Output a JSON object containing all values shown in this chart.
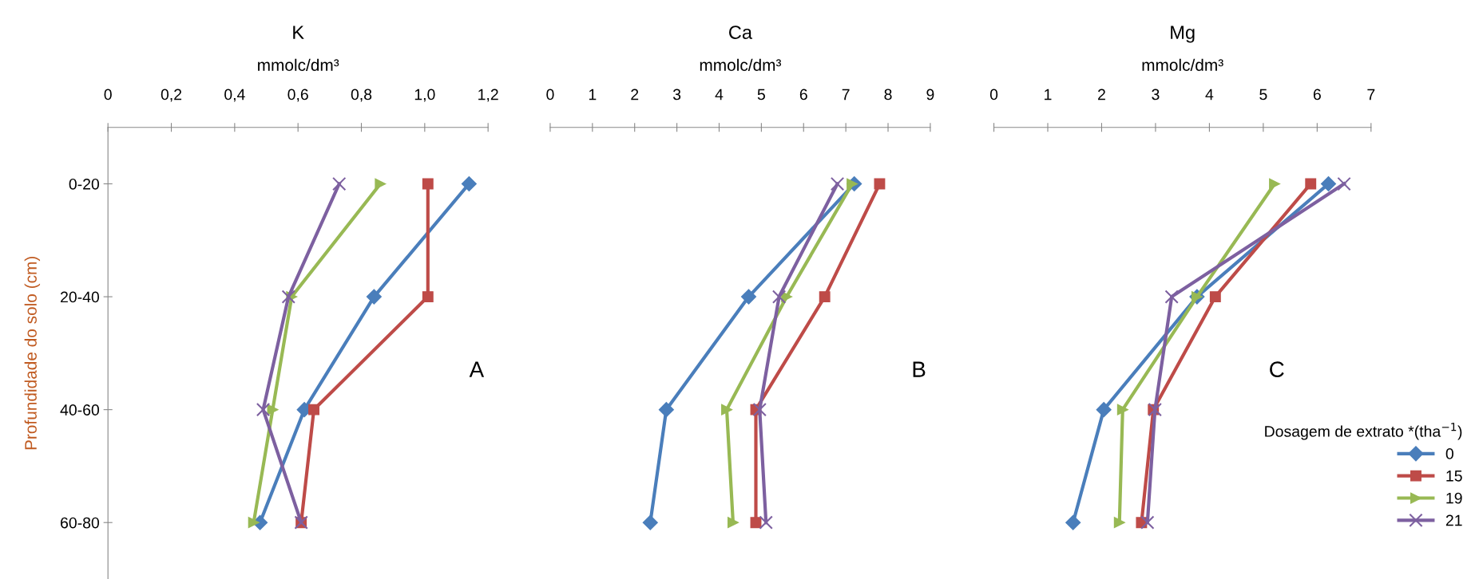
{
  "chart_data": [
    {
      "type": "line",
      "title": "K",
      "xlabel": "mmolc/dm³",
      "ylabel": "Profundidade do solo (cm)",
      "categories": [
        "0-20",
        "20-40",
        "40-60",
        "60-80"
      ],
      "orientation": "horizontal",
      "xlim": [
        0,
        1.2
      ],
      "xticks": [
        0,
        {
          "value": 0.2,
          "label": "0,2"
        },
        {
          "value": 0.4,
          "label": "0,4"
        },
        {
          "value": 0.6,
          "label": "0,6"
        },
        {
          "value": 0.8,
          "label": "0,8"
        },
        {
          "value": 1.0,
          "label": "1,0"
        },
        {
          "value": 1.2,
          "label": "1,2"
        }
      ],
      "annotations": [
        "A"
      ],
      "grid": false,
      "legend": false,
      "series": [
        {
          "color": "#4a7ebb",
          "marker": "diamond",
          "values": [
            1.14,
            0.84,
            0.62,
            0.48
          ]
        },
        {
          "color": "#be4b48",
          "marker": "square",
          "values": [
            1.01,
            1.01,
            0.65,
            0.61
          ]
        },
        {
          "color": "#98b954",
          "marker": "triangle",
          "values": [
            0.86,
            0.58,
            0.52,
            0.46
          ]
        },
        {
          "color": "#7d60a0",
          "marker": "cross",
          "values": [
            0.73,
            0.57,
            0.49,
            0.61
          ]
        }
      ]
    },
    {
      "type": "line",
      "title": "Ca",
      "xlabel": "mmolc/dm³",
      "categories": [
        null,
        null,
        null,
        null
      ],
      "orientation": "horizontal",
      "xlim": [
        0,
        9
      ],
      "xticks": [
        0,
        1,
        2,
        3,
        4,
        5,
        6,
        7,
        8,
        9
      ],
      "tick_labels": "x",
      "annotations": [
        "B"
      ],
      "grid": false,
      "legend": false,
      "series": [
        {
          "color": "#4a7ebb",
          "marker": "diamond",
          "values": [
            7.2,
            4.7,
            2.75,
            2.37
          ]
        },
        {
          "color": "#be4b48",
          "marker": "square",
          "values": [
            7.8,
            6.5,
            4.87,
            4.87
          ]
        },
        {
          "color": "#98b954",
          "marker": "triangle",
          "values": [
            7.15,
            5.6,
            4.18,
            4.33
          ]
        },
        {
          "color": "#7d60a0",
          "marker": "cross",
          "values": [
            6.8,
            5.42,
            4.96,
            5.11
          ]
        }
      ]
    },
    {
      "type": "line",
      "title": "Mg",
      "xlabel": "mmolc/dm³",
      "categories": [
        null,
        null,
        null,
        null
      ],
      "orientation": "horizontal",
      "xlim": [
        0,
        7
      ],
      "xticks": [
        0,
        1,
        2,
        3,
        4,
        5,
        6,
        7
      ],
      "tick_labels": "x",
      "annotations": [
        "C"
      ],
      "grid": false,
      "legend": "lower right",
      "legend_title": "Dosagem de extrato *(tha$^{−1}$)",
      "series": [
        {
          "name": "0",
          "color": "#4a7ebb",
          "marker": "diamond",
          "values": [
            6.21,
            3.77,
            2.04,
            1.47
          ]
        },
        {
          "name": "15",
          "color": "#be4b48",
          "marker": "square",
          "values": [
            5.88,
            4.11,
            2.96,
            2.74
          ]
        },
        {
          "name": "19",
          "color": "#98b954",
          "marker": "triangle",
          "values": [
            5.21,
            3.77,
            2.39,
            2.33
          ]
        },
        {
          "name": "21",
          "color": "#7d60a0",
          "marker": "cross",
          "values": [
            6.5,
            3.3,
            2.99,
            2.85
          ]
        }
      ]
    }
  ]
}
